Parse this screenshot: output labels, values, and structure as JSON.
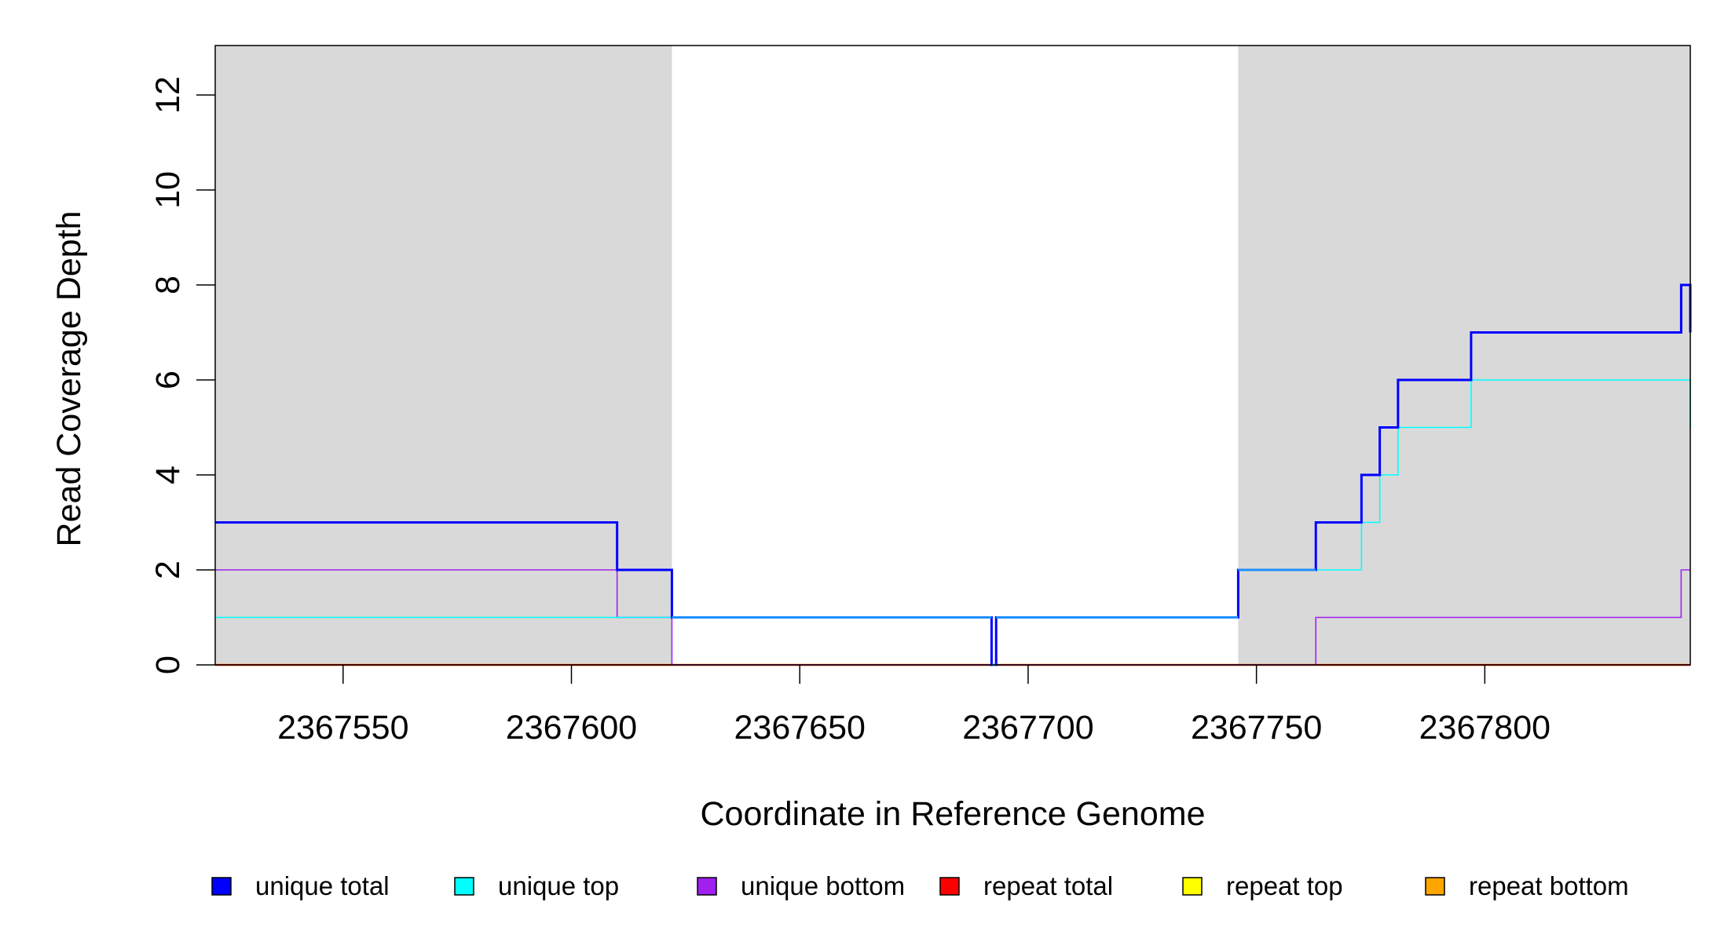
{
  "chart_data": {
    "type": "line",
    "xlabel": "Coordinate in Reference Genome",
    "ylabel": "Read Coverage Depth",
    "xlim": [
      2367522,
      2367845
    ],
    "ylim": [
      0,
      13
    ],
    "x_ticks": [
      2367550,
      2367600,
      2367650,
      2367700,
      2367750,
      2367800
    ],
    "x_tick_labels": [
      "2367550",
      "2367600",
      "2367650",
      "2367700",
      "2367750",
      "2367800"
    ],
    "y_ticks": [
      0,
      2,
      4,
      6,
      8,
      10,
      12
    ],
    "y_tick_labels": [
      "0",
      "2",
      "4",
      "6",
      "8",
      "10",
      "12"
    ],
    "shaded_regions": [
      {
        "x0": 2367522,
        "x1": 2367622,
        "color": "#d9d9d9"
      },
      {
        "x0": 2367746,
        "x1": 2367845,
        "color": "#d9d9d9"
      }
    ],
    "grid": false,
    "legend_position": "bottom",
    "series": [
      {
        "name": "unique total",
        "color": "#0000ff",
        "steps": [
          [
            2367522,
            3
          ],
          [
            2367610,
            2
          ],
          [
            2367622,
            1
          ],
          [
            2367692,
            0
          ],
          [
            2367693,
            1
          ],
          [
            2367746,
            2
          ],
          [
            2367763,
            3
          ],
          [
            2367773,
            4
          ],
          [
            2367777,
            5
          ],
          [
            2367781,
            6
          ],
          [
            2367797,
            7
          ],
          [
            2367843,
            8
          ],
          [
            2367845,
            7
          ]
        ]
      },
      {
        "name": "unique top",
        "color": "#00ffff",
        "steps": [
          [
            2367522,
            1
          ],
          [
            2367692,
            0
          ],
          [
            2367693,
            1
          ],
          [
            2367746,
            2
          ],
          [
            2367773,
            3
          ],
          [
            2367777,
            4
          ],
          [
            2367781,
            5
          ],
          [
            2367797,
            6
          ],
          [
            2367845,
            5
          ]
        ]
      },
      {
        "name": "unique bottom",
        "color": "#a020f0",
        "steps": [
          [
            2367522,
            2
          ],
          [
            2367610,
            1
          ],
          [
            2367622,
            0
          ],
          [
            2367763,
            1
          ],
          [
            2367843,
            2
          ]
        ]
      },
      {
        "name": "repeat total",
        "color": "#ff0000",
        "steps": [
          [
            2367522,
            0
          ],
          [
            2367845,
            0
          ]
        ]
      },
      {
        "name": "repeat top",
        "color": "#ffff00",
        "steps": [
          [
            2367522,
            0
          ],
          [
            2367845,
            0
          ]
        ]
      },
      {
        "name": "repeat bottom",
        "color": "#ffa500",
        "steps": [
          [
            2367522,
            0
          ],
          [
            2367845,
            0
          ]
        ]
      }
    ]
  }
}
